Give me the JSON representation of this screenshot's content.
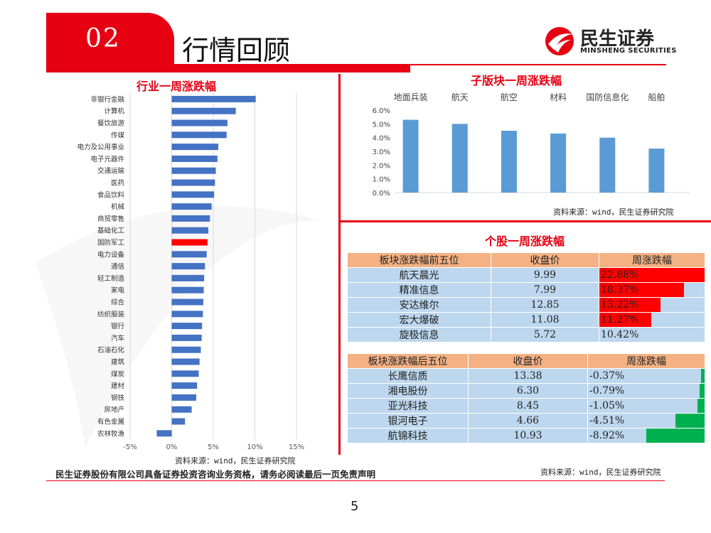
{
  "header": {
    "section_number": "02",
    "section_title": "行情回顾",
    "logo_cn": "民生证券",
    "logo_en": "MINSHENG SECURITIES"
  },
  "left_panel": {
    "title": "行业一周涨跌幅",
    "source": "资料来源：wind，民生证券研究院"
  },
  "top_right_panel": {
    "title": "子版块一周涨跌幅",
    "source": "资料来源：wind，民生证券研究院"
  },
  "bottom_right_panel": {
    "title": "个股一周涨跌幅",
    "source": "资料来源：wind，民生证券研究院",
    "top5": {
      "headers": [
        "板块涨跌幅前五位",
        "收盘价",
        "周涨跌幅"
      ],
      "rows": [
        {
          "name": "航天晨光",
          "close": "9.99",
          "pct": "22.88%",
          "value": 22.88
        },
        {
          "name": "精准信息",
          "close": "7.99",
          "pct": "18.37%",
          "value": 18.37
        },
        {
          "name": "安达维尔",
          "close": "12.85",
          "pct": "13.22%",
          "value": 13.22
        },
        {
          "name": "宏大爆破",
          "close": "11.08",
          "pct": "11.27%",
          "value": 11.27
        },
        {
          "name": "旋极信息",
          "close": "5.72",
          "pct": "10.42%",
          "value": 10.42
        }
      ]
    },
    "bottom5": {
      "headers": [
        "板块涨跌幅后五位",
        "收盘价",
        "周涨跌幅"
      ],
      "rows": [
        {
          "name": "长鹰信质",
          "close": "13.38",
          "pct": "-0.37%",
          "value": -0.37
        },
        {
          "name": "湘电股份",
          "close": "6.30",
          "pct": "-0.79%",
          "value": -0.79
        },
        {
          "name": "亚光科技",
          "close": "8.45",
          "pct": "-1.05%",
          "value": -1.05
        },
        {
          "name": "银河电子",
          "close": "4.66",
          "pct": "-4.51%",
          "value": -4.51
        },
        {
          "name": "航锦科技",
          "close": "10.93",
          "pct": "-8.92%",
          "value": -8.92
        }
      ]
    }
  },
  "footer": {
    "disclaimer": "民生证券股份有限公司具备证券投资咨询业务资格，请务必阅读最后一页免责声明",
    "page_number": "5"
  },
  "colors": {
    "accent": "#e60012",
    "bar_blue": "#4472c4",
    "column_blue": "#5b9bd5",
    "highlight_red": "#ff0000",
    "negative_green": "#00b050",
    "table_header": "#f4b183",
    "table_cell": "#bdd7ee"
  },
  "chart_data": [
    {
      "type": "bar",
      "orientation": "horizontal",
      "categories": [
        "非银行金融",
        "计算机",
        "餐饮旅游",
        "传媒",
        "电力及公用事业",
        "电子元器件",
        "交通运输",
        "医药",
        "食品饮料",
        "机械",
        "商贸零售",
        "基础化工",
        "国防军工",
        "电力设备",
        "通信",
        "轻工制造",
        "家电",
        "综合",
        "纺织服装",
        "银行",
        "汽车",
        "石油石化",
        "建筑",
        "煤炭",
        "建材",
        "钢铁",
        "房地产",
        "有色金属",
        "农林牧渔"
      ],
      "values": [
        10.1,
        7.7,
        6.7,
        6.6,
        5.6,
        5.5,
        5.3,
        5.2,
        5.1,
        4.8,
        4.6,
        4.4,
        4.3,
        4.2,
        4.0,
        3.9,
        3.85,
        3.8,
        3.75,
        3.65,
        3.6,
        3.5,
        3.35,
        3.25,
        3.05,
        2.95,
        2.4,
        1.6,
        -1.8
      ],
      "highlight": "国防军工",
      "xlim": [
        -5,
        15
      ],
      "xticks": [
        "-5%",
        "0%",
        "5%",
        "10%",
        "15%"
      ],
      "xtick_values": [
        -5,
        0,
        5,
        10,
        15
      ],
      "grid": true
    },
    {
      "type": "bar",
      "categories": [
        "地面兵装",
        "航天",
        "航空",
        "材料",
        "国防信息化",
        "船舶"
      ],
      "values": [
        5.3,
        5.0,
        4.5,
        4.3,
        4.0,
        3.2
      ],
      "ylim": [
        0,
        6
      ],
      "yticks": [
        "0.0%",
        "1.0%",
        "2.0%",
        "3.0%",
        "4.0%",
        "5.0%",
        "6.0%"
      ],
      "ytick_values": [
        0,
        1,
        2,
        3,
        4,
        5,
        6
      ],
      "category_labels_position": "top"
    }
  ]
}
